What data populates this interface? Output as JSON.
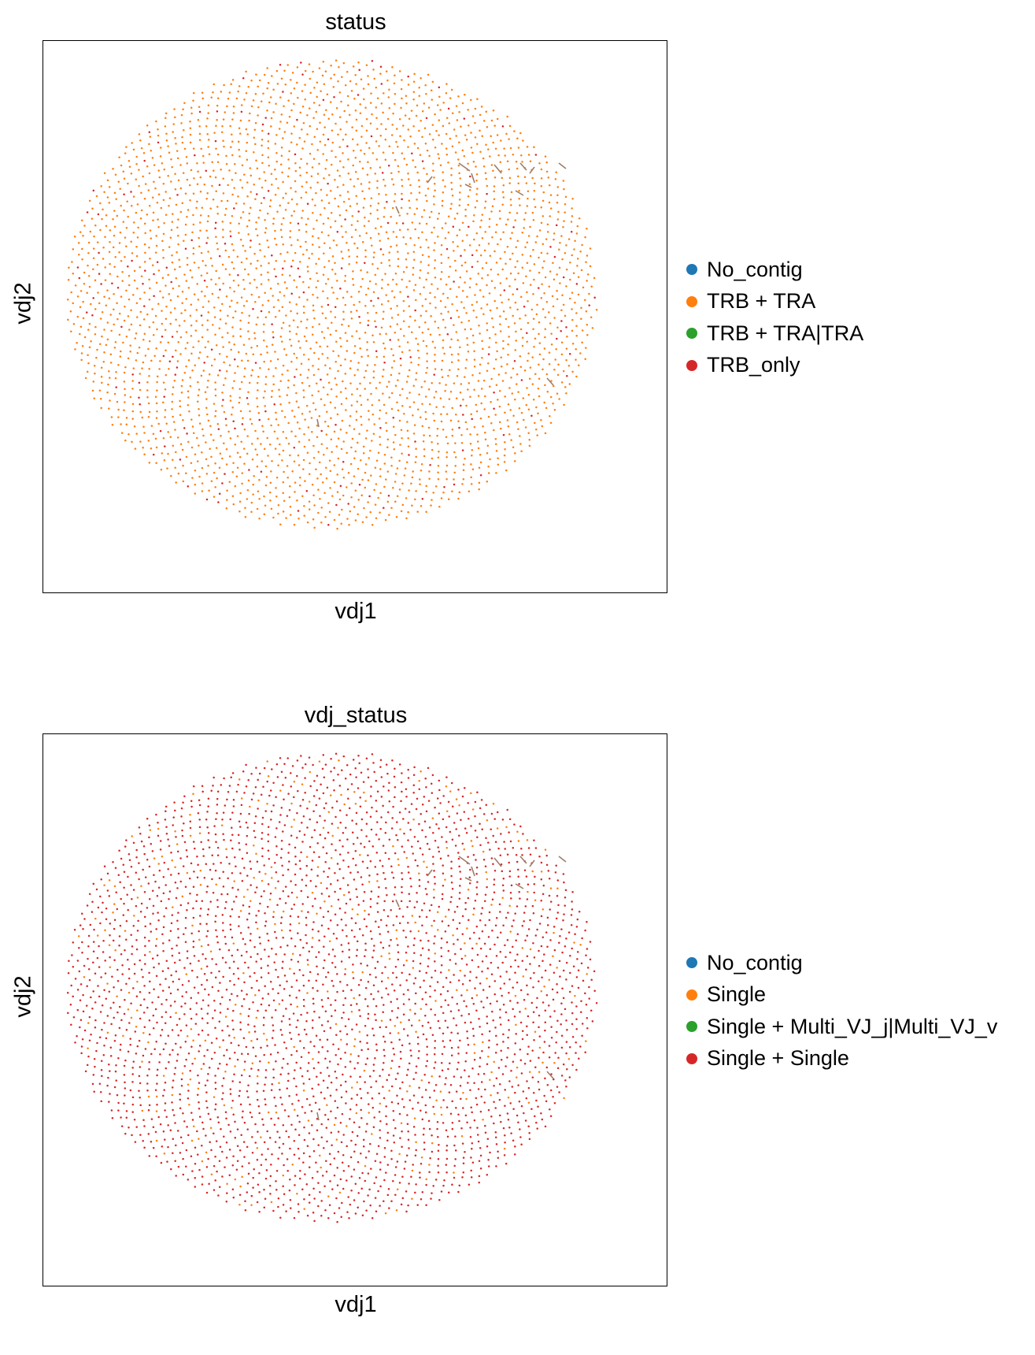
{
  "chart_data": [
    {
      "type": "scatter",
      "title": "status",
      "xlabel": "vdj1",
      "ylabel": "vdj2",
      "grid": false,
      "legend_position": "right-outside",
      "series": [
        {
          "name": "No_contig",
          "color": "#1f77b4",
          "share": 0.0
        },
        {
          "name": "TRB + TRA",
          "color": "#ff7f0e",
          "share": 0.93
        },
        {
          "name": "TRB + TRA|TRA",
          "color": "#2ca02c",
          "share": 0.0
        },
        {
          "name": "TRB_only",
          "color": "#d62728",
          "share": 0.07
        }
      ]
    },
    {
      "type": "scatter",
      "title": "vdj_status",
      "xlabel": "vdj1",
      "ylabel": "vdj2",
      "grid": false,
      "legend_position": "right-outside",
      "series": [
        {
          "name": "No_contig",
          "color": "#1f77b4",
          "share": 0.0
        },
        {
          "name": "Single",
          "color": "#ff7f0e",
          "share": 0.12
        },
        {
          "name": "Single + Multi_VJ_j|Multi_VJ_v",
          "color": "#2ca02c",
          "share": 0.0
        },
        {
          "name": "Single + Single",
          "color": "#d62728",
          "share": 0.88
        }
      ]
    }
  ]
}
